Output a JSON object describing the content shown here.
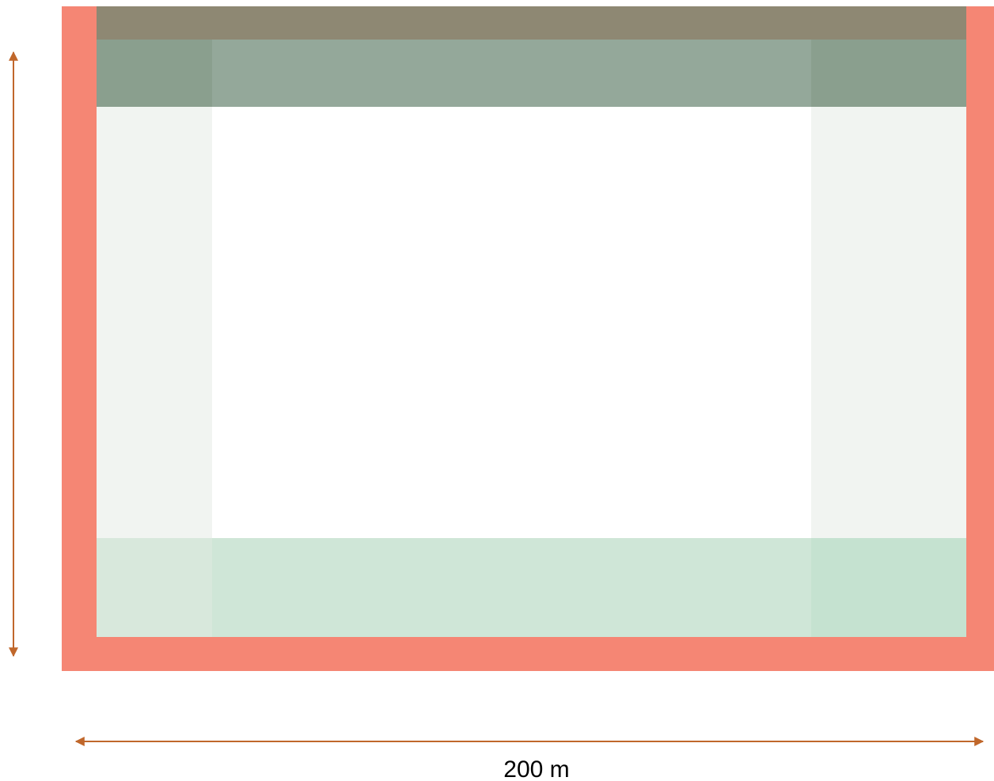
{
  "dimension_label": "200 m"
}
